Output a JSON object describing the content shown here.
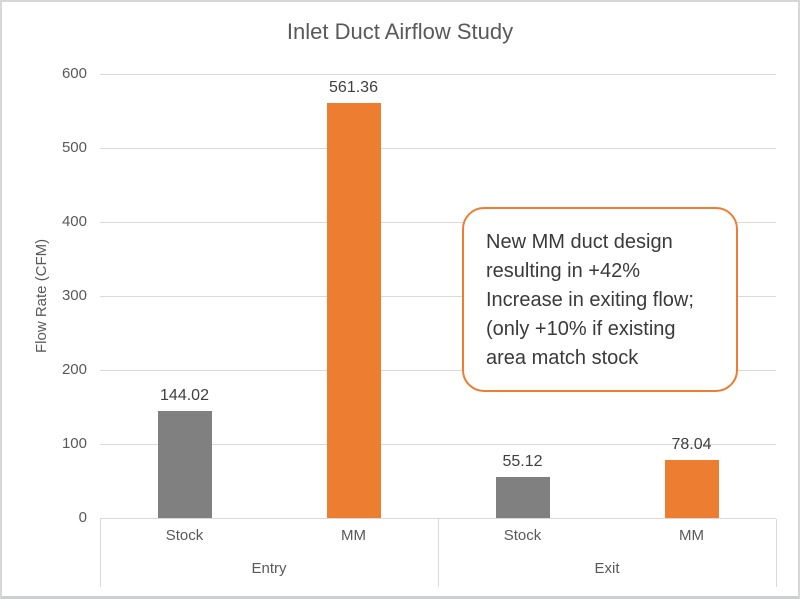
{
  "window": {
    "background": "#ffffff",
    "border_color": "#d7d7d7"
  },
  "chart_data": {
    "type": "bar",
    "title": "Inlet Duct Airflow Study",
    "xlabel": "",
    "ylabel": "Flow Rate (CFM)",
    "ylim": [
      0,
      600
    ],
    "yticks": [
      0,
      100,
      200,
      300,
      400,
      500,
      600
    ],
    "grid": true,
    "legend": "none",
    "grid_color": "#d9d9d9",
    "axis_text_color": "#595959",
    "data_label_color": "#404040",
    "groups": [
      {
        "label": "Entry",
        "bars": [
          {
            "category": "Stock",
            "value": 144.02,
            "label": "144.02",
            "color": "#808080"
          },
          {
            "category": "MM",
            "value": 561.36,
            "label": "561.36",
            "color": "#ED7D31"
          }
        ]
      },
      {
        "label": "Exit",
        "bars": [
          {
            "category": "Stock",
            "value": 55.12,
            "label": "55.12",
            "color": "#808080"
          },
          {
            "category": "MM",
            "value": 78.04,
            "label": "78.04",
            "color": "#ED7D31"
          }
        ]
      }
    ],
    "series": [
      {
        "name": "Stock",
        "color": "#808080",
        "values": [
          144.02,
          55.12
        ]
      },
      {
        "name": "MM",
        "color": "#ED7D31",
        "values": [
          561.36,
          78.04
        ]
      }
    ]
  },
  "annotation": {
    "lines": [
      "New MM duct design",
      "resulting in +42%",
      "Increase in exiting flow;",
      "(only +10% if existing",
      "area match stock"
    ],
    "border_color": "#ED7D31",
    "text_color": "#3a3a3a"
  }
}
